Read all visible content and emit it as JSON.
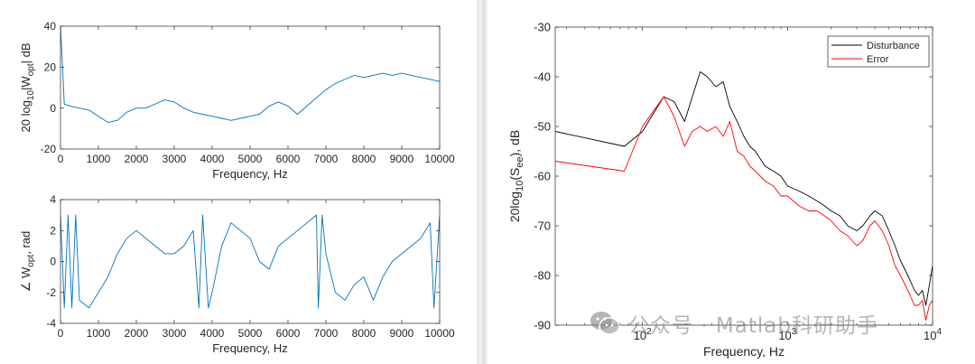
{
  "colors": {
    "blue": "#0072BD",
    "black": "#000000",
    "red": "#FF0000",
    "axis": "#262626"
  },
  "watermark": {
    "text": "公众号 · Matlab科研助手",
    "logo_icon": "wechat-logo-icon"
  },
  "chart_data": [
    {
      "type": "line",
      "panel": "top-left",
      "xlabel": "Frequency, Hz",
      "ylabel_parts": {
        "prefix": "20 log",
        "sub1": "10",
        "mid": "|W",
        "sub2": "opt",
        "suffix": "| dB"
      },
      "xlim": [
        0,
        10000
      ],
      "ylim": [
        -20,
        40
      ],
      "xticks": [
        0,
        1000,
        2000,
        3000,
        4000,
        5000,
        6000,
        7000,
        8000,
        9000,
        10000
      ],
      "xtick_labels": [
        "0",
        "1000",
        "2000",
        "3000",
        "4000",
        "5000",
        "6000",
        "7000",
        "8000",
        "9000",
        "10000"
      ],
      "yticks": [
        -20,
        0,
        20,
        40
      ],
      "ytick_labels": [
        "-20",
        "0",
        "20",
        "40"
      ],
      "series": [
        {
          "color": "#0072BD",
          "x": [
            0,
            50,
            100,
            250,
            500,
            750,
            1000,
            1250,
            1500,
            1750,
            2000,
            2250,
            2500,
            2750,
            3000,
            3250,
            3500,
            3750,
            4000,
            4250,
            4500,
            4750,
            5000,
            5250,
            5500,
            5750,
            6000,
            6250,
            6500,
            6750,
            7000,
            7250,
            7500,
            7750,
            8000,
            8250,
            8500,
            8750,
            9000,
            9250,
            9500,
            9750,
            10000
          ],
          "y": [
            40,
            22,
            2,
            1,
            0,
            -1,
            -4,
            -7,
            -6,
            -2,
            0,
            0,
            2,
            4,
            3,
            0,
            -2,
            -3,
            -4,
            -5,
            -6,
            -5,
            -4,
            -3,
            1,
            3,
            1,
            -3,
            1,
            5,
            9,
            12,
            14,
            16,
            15,
            16,
            17,
            16,
            17,
            16,
            15,
            14,
            13
          ]
        }
      ]
    },
    {
      "type": "line",
      "panel": "bottom-left",
      "xlabel": "Frequency, Hz",
      "ylabel_parts": {
        "prefix": "∠ W",
        "sub": "opt",
        "suffix": ", rad"
      },
      "xlim": [
        0,
        10000
      ],
      "ylim": [
        -4,
        4
      ],
      "xticks": [
        0,
        1000,
        2000,
        3000,
        4000,
        5000,
        6000,
        7000,
        8000,
        9000,
        10000
      ],
      "xtick_labels": [
        "0",
        "1000",
        "2000",
        "3000",
        "4000",
        "5000",
        "6000",
        "7000",
        "8000",
        "9000",
        "10000"
      ],
      "yticks": [
        -4,
        -2,
        0,
        2,
        4
      ],
      "ytick_labels": [
        "-4",
        "-2",
        "0",
        "2",
        "4"
      ],
      "series": [
        {
          "color": "#0072BD",
          "x": [
            0,
            100,
            200,
            300,
            400,
            500,
            750,
            1000,
            1250,
            1500,
            1750,
            2000,
            2250,
            2500,
            2750,
            3000,
            3250,
            3500,
            3650,
            3750,
            3900,
            4000,
            4250,
            4500,
            4750,
            5000,
            5250,
            5500,
            5750,
            6000,
            6250,
            6500,
            6750,
            6800,
            6900,
            7000,
            7250,
            7500,
            7750,
            8000,
            8250,
            8500,
            8750,
            9000,
            9250,
            9500,
            9750,
            9850,
            10000
          ],
          "y": [
            3,
            -3,
            3,
            -3,
            3,
            -2.5,
            -3,
            -2,
            -1,
            0.5,
            1.5,
            2,
            1.5,
            1,
            0.5,
            0.5,
            1,
            2,
            -3,
            3,
            -3,
            -2,
            1,
            2.5,
            2,
            1.5,
            0,
            -0.5,
            1,
            1.5,
            2,
            2.5,
            3,
            -3,
            3,
            0.5,
            -2,
            -2.5,
            -1.5,
            -1,
            -2.5,
            -1,
            0,
            0.5,
            1,
            1.5,
            2.5,
            -3,
            3
          ]
        }
      ]
    },
    {
      "type": "line",
      "panel": "right",
      "xscale": "log",
      "xlabel": "Frequency, Hz",
      "ylabel_parts": {
        "prefix": "20log",
        "sub1": "10",
        "mid": "(S",
        "sub2": "ee",
        "suffix": "), dB"
      },
      "xlim": [
        25,
        10000
      ],
      "ylim": [
        -90,
        -30
      ],
      "xticks": [
        100,
        1000,
        10000
      ],
      "xtick_labels": [
        {
          "base": "10",
          "exp": "2"
        },
        {
          "base": "10",
          "exp": "3"
        },
        {
          "base": "10",
          "exp": "4"
        }
      ],
      "yticks": [
        -90,
        -80,
        -70,
        -60,
        -50,
        -40,
        -30
      ],
      "ytick_labels": [
        "-90",
        "-80",
        "-70",
        "-60",
        "-50",
        "-40",
        "-30"
      ],
      "legend_position": "top-right",
      "series": [
        {
          "name": "Disturbance",
          "color": "#000000",
          "x": [
            25,
            75,
            100,
            140,
            165,
            195,
            250,
            280,
            320,
            360,
            400,
            450,
            500,
            550,
            600,
            700,
            800,
            900,
            1000,
            1200,
            1400,
            1600,
            1800,
            2000,
            2300,
            2600,
            3000,
            3300,
            3700,
            4000,
            4500,
            5000,
            5500,
            6000,
            6500,
            7000,
            7500,
            8000,
            8500,
            9000,
            9500,
            10000
          ],
          "y": [
            -51,
            -54,
            -51,
            -44,
            -45,
            -49,
            -39,
            -40,
            -42,
            -41,
            -46,
            -49,
            -52,
            -54,
            -55,
            -58,
            -59,
            -60,
            -62,
            -63,
            -64,
            -65,
            -66,
            -67,
            -68,
            -70,
            -71,
            -70,
            -68,
            -67,
            -68,
            -71,
            -74,
            -77,
            -79,
            -81,
            -83,
            -84,
            -83,
            -86,
            -82,
            -78
          ]
        },
        {
          "name": "Error",
          "color": "#FF0000",
          "x": [
            25,
            75,
            100,
            140,
            165,
            195,
            220,
            250,
            280,
            320,
            360,
            400,
            450,
            500,
            550,
            600,
            700,
            800,
            900,
            1000,
            1200,
            1400,
            1600,
            1800,
            2000,
            2300,
            2600,
            3000,
            3300,
            3700,
            4000,
            4500,
            5000,
            5500,
            6000,
            6500,
            7000,
            7500,
            8000,
            8500,
            9000,
            9500,
            10000
          ],
          "y": [
            -57,
            -59,
            -50,
            -44,
            -48,
            -54,
            -51,
            -50,
            -51,
            -50,
            -52,
            -49,
            -55,
            -56,
            -58,
            -59,
            -61,
            -62,
            -64,
            -64,
            -66,
            -67,
            -67,
            -68,
            -69,
            -71,
            -72,
            -74,
            -73,
            -70,
            -69,
            -71,
            -74,
            -78,
            -80,
            -82,
            -84,
            -86,
            -86,
            -85,
            -89,
            -86,
            -85
          ]
        }
      ]
    }
  ]
}
